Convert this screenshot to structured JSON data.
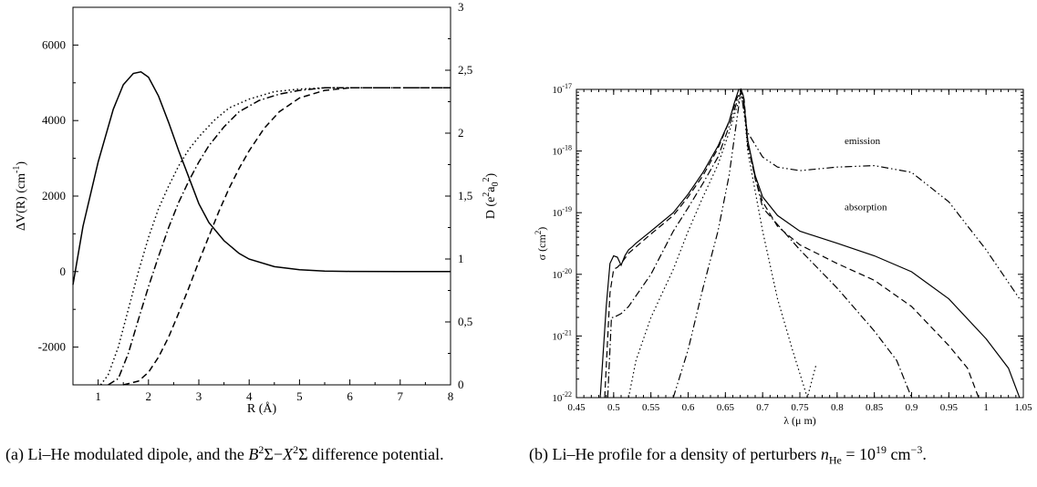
{
  "chart_data": [
    {
      "type": "line",
      "xlabel": "R (Å)",
      "ylabel": "ΔV(R) (cm",
      "ylabel_sup": "-1",
      "ylabel_end": ")",
      "y2label": "D (e",
      "y2label_sup": "2",
      "y2label_mid": "a",
      "y2label_sub": "0",
      "y2label_sup2": "2",
      "y2label_end": ")",
      "xlim": [
        0.5,
        8
      ],
      "ylim": [
        -3000,
        7000
      ],
      "y2lim": [
        0,
        3
      ],
      "x_ticks": [
        "1",
        "2",
        "3",
        "4",
        "5",
        "6",
        "7",
        "8"
      ],
      "y_ticks": [
        "-2000",
        "0",
        "2000",
        "4000",
        "6000"
      ],
      "y2_ticks": [
        "0",
        "0,5",
        "1",
        "1,5",
        "2",
        "2,5",
        "3"
      ],
      "series": [
        {
          "style": "solid",
          "axis": "left",
          "x": [
            0.5,
            0.7,
            1.0,
            1.3,
            1.5,
            1.7,
            1.85,
            2.0,
            2.2,
            2.4,
            2.6,
            2.8,
            3.0,
            3.2,
            3.5,
            3.8,
            4.0,
            4.5,
            5.0,
            5.5,
            6.0,
            7.0,
            8.0
          ],
          "y": [
            -350,
            1200,
            2900,
            4300,
            4950,
            5250,
            5290,
            5150,
            4650,
            3950,
            3200,
            2500,
            1800,
            1300,
            820,
            480,
            330,
            130,
            50,
            15,
            5,
            0,
            0
          ]
        },
        {
          "style": "dotted",
          "axis": "right",
          "x": [
            1.05,
            1.2,
            1.4,
            1.6,
            1.8,
            2.0,
            2.2,
            2.4,
            2.6,
            2.8,
            3.0,
            3.3,
            3.6,
            4.0,
            4.5,
            5.0,
            5.5,
            6.0,
            8.0
          ],
          "y": [
            0,
            0.08,
            0.3,
            0.6,
            0.9,
            1.17,
            1.4,
            1.58,
            1.74,
            1.87,
            1.97,
            2.1,
            2.2,
            2.27,
            2.33,
            2.35,
            2.36,
            2.36,
            2.36
          ]
        },
        {
          "style": "dashdot",
          "axis": "right",
          "x": [
            1.2,
            1.4,
            1.6,
            1.8,
            2.0,
            2.2,
            2.4,
            2.6,
            2.8,
            3.0,
            3.2,
            3.5,
            3.8,
            4.2,
            4.6,
            5.0,
            5.5,
            6.0,
            8.0
          ],
          "y": [
            0,
            0.05,
            0.25,
            0.52,
            0.78,
            1.02,
            1.25,
            1.45,
            1.62,
            1.77,
            1.9,
            2.05,
            2.17,
            2.26,
            2.31,
            2.34,
            2.36,
            2.36,
            2.36
          ]
        },
        {
          "style": "dashed",
          "axis": "right",
          "x": [
            1.5,
            1.8,
            2.0,
            2.2,
            2.4,
            2.6,
            2.8,
            3.0,
            3.2,
            3.4,
            3.6,
            3.8,
            4.0,
            4.3,
            4.6,
            5.0,
            5.5,
            6.0,
            8.0
          ],
          "y": [
            0,
            0.03,
            0.1,
            0.22,
            0.38,
            0.57,
            0.77,
            0.98,
            1.18,
            1.38,
            1.56,
            1.72,
            1.86,
            2.04,
            2.17,
            2.28,
            2.34,
            2.36,
            2.36
          ]
        }
      ]
    },
    {
      "type": "line",
      "xlabel": "λ (μ m)",
      "ylabel": "σ (cm",
      "ylabel_sup": "2",
      "ylabel_end": ")",
      "y_scale": "log",
      "xlim": [
        0.45,
        1.05
      ],
      "ylim": [
        1e-22,
        1e-17
      ],
      "x_ticks": [
        "0.45",
        "0.5",
        "0.55",
        "0.6",
        "0.65",
        "0.7",
        "0.75",
        "0.8",
        "0.85",
        "0.9",
        "0.95",
        "1",
        "1.05"
      ],
      "y_ticks": [
        {
          "base": "10",
          "exp": "-22"
        },
        {
          "base": "10",
          "exp": "-21"
        },
        {
          "base": "10",
          "exp": "-20"
        },
        {
          "base": "10",
          "exp": "-19"
        },
        {
          "base": "10",
          "exp": "-18"
        },
        {
          "base": "10",
          "exp": "-17"
        }
      ],
      "annotations": [
        {
          "text": "emission",
          "x": 0.81,
          "y": 1.3e-18
        },
        {
          "text": "absorption",
          "x": 0.81,
          "y": 1.1e-19
        }
      ],
      "series": [
        {
          "style": "solid",
          "x": [
            0.482,
            0.49,
            0.495,
            0.5,
            0.505,
            0.51,
            0.515,
            0.52,
            0.525,
            0.53,
            0.55,
            0.58,
            0.6,
            0.62,
            0.64,
            0.655,
            0.662,
            0.668,
            0.671,
            0.674,
            0.68,
            0.69,
            0.7,
            0.72,
            0.75,
            0.8,
            0.85,
            0.9,
            0.95,
            1.0,
            1.03,
            1.045
          ],
          "y": [
            1e-22,
            3e-21,
            1.5e-20,
            2e-20,
            1.9e-20,
            1.4e-20,
            2e-20,
            2.5e-20,
            2.8e-20,
            3.2e-20,
            5e-20,
            1e-19,
            2e-19,
            4.5e-19,
            1.2e-18,
            3e-18,
            6e-18,
            1e-17,
            1e-17,
            8e-18,
            1.5e-18,
            4e-19,
            1.8e-19,
            9e-20,
            5e-20,
            3.2e-20,
            2e-20,
            1.1e-20,
            4e-21,
            9e-22,
            3e-22,
            1e-22
          ]
        },
        {
          "style": "dashed",
          "x": [
            0.488,
            0.495,
            0.5,
            0.505,
            0.51,
            0.52,
            0.55,
            0.58,
            0.6,
            0.62,
            0.64,
            0.655,
            0.665,
            0.671,
            0.675,
            0.68,
            0.69,
            0.7,
            0.72,
            0.75,
            0.8,
            0.85,
            0.9,
            0.95,
            0.975,
            0.99
          ],
          "y": [
            1e-22,
            5e-21,
            1.2e-20,
            1.3e-20,
            1.5e-20,
            2.2e-20,
            4.5e-20,
            9e-20,
            1.8e-19,
            4e-19,
            1.1e-18,
            3e-18,
            7e-18,
            1e-17,
            7e-18,
            1.5e-18,
            3.5e-19,
            1.5e-19,
            6e-20,
            3e-20,
            1.5e-20,
            8e-21,
            3e-21,
            7e-22,
            3e-22,
            1e-22
          ]
        },
        {
          "style": "dashdot",
          "x": [
            0.492,
            0.497,
            0.5,
            0.51,
            0.52,
            0.55,
            0.58,
            0.6,
            0.62,
            0.64,
            0.655,
            0.665,
            0.671,
            0.675,
            0.68,
            0.7,
            0.75,
            0.8,
            0.85,
            0.88,
            0.9
          ],
          "y": [
            1e-22,
            2e-21,
            2e-21,
            2.3e-21,
            3e-21,
            1e-20,
            5e-20,
            1.2e-19,
            3e-19,
            8e-19,
            2.5e-18,
            6e-18,
            9e-18,
            6e-18,
            1.2e-18,
            1.2e-19,
            2.5e-20,
            6e-21,
            1.2e-21,
            4e-22,
            1e-22
          ]
        },
        {
          "style": "dotted",
          "x": [
            0.52,
            0.53,
            0.55,
            0.58,
            0.6,
            0.62,
            0.64,
            0.655,
            0.665,
            0.671,
            0.675,
            0.68,
            0.7,
            0.72,
            0.74,
            0.76,
            0.772
          ],
          "y": [
            1e-22,
            4e-22,
            2e-21,
            1.2e-20,
            5e-20,
            1.8e-19,
            6e-19,
            2e-18,
            5e-18,
            8e-18,
            5e-18,
            1e-18,
            5e-20,
            4e-21,
            6e-22,
            1e-22,
            3.5e-22
          ]
        },
        {
          "style": "dashdotdot",
          "x": [
            0.58,
            0.6,
            0.62,
            0.64,
            0.655,
            0.665,
            0.671,
            0.675,
            0.68,
            0.7,
            0.72,
            0.75,
            0.8,
            0.85,
            0.9,
            0.95,
            1.0,
            1.045
          ],
          "y": [
            1e-22,
            6e-22,
            6e-21,
            5e-20,
            4e-19,
            3e-18,
            1e-17,
            4e-18,
            2e-18,
            8e-19,
            5.5e-19,
            4.8e-19,
            5.5e-19,
            5.8e-19,
            4.5e-19,
            1.5e-19,
            2.5e-20,
            4e-21
          ]
        }
      ]
    }
  ],
  "captions": {
    "a": {
      "prefix": "(a) Li–He modulated dipole, and the ",
      "B": "B",
      "B_sup": "2",
      "sigma1": "Σ−",
      "X": "X",
      "X_sup": "2",
      "suffix": "Σ difference potential."
    },
    "b": {
      "prefix": "(b) Li–He profile for a density of perturbers ",
      "n": "n",
      "n_sub": "He",
      "eq": " = 10",
      "exp": "19",
      "tail": " cm",
      "tail_sup": "−3",
      "end": "."
    }
  }
}
